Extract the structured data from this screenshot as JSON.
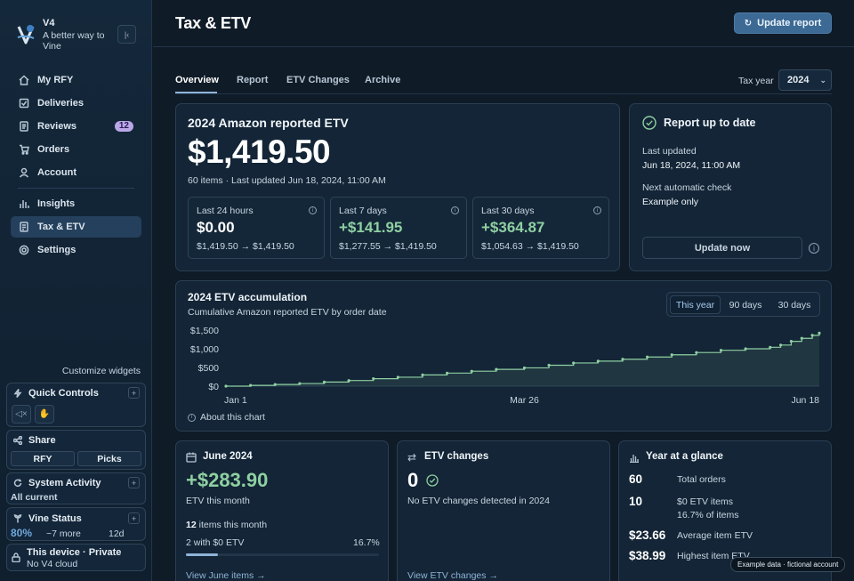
{
  "app": {
    "name": "V4",
    "tagline": "A better way to Vine"
  },
  "sidebar": {
    "nav": [
      {
        "label": "My RFY",
        "icon": "home-icon"
      },
      {
        "label": "Deliveries",
        "icon": "box-icon"
      },
      {
        "label": "Reviews",
        "icon": "document-icon",
        "badge": "12"
      },
      {
        "label": "Orders",
        "icon": "cart-icon"
      },
      {
        "label": "Account",
        "icon": "user-icon"
      },
      {
        "label": "Insights",
        "icon": "bar-chart-icon"
      },
      {
        "label": "Tax & ETV",
        "icon": "receipt-icon",
        "active": true
      },
      {
        "label": "Settings",
        "icon": "gear-icon"
      }
    ],
    "customize_label": "Customize widgets",
    "widgets": {
      "quick_controls": {
        "title": "Quick Controls"
      },
      "share": {
        "title": "Share",
        "buttons": [
          "RFY",
          "Picks"
        ]
      },
      "system_activity": {
        "title": "System Activity",
        "status": "All current"
      },
      "vine_status": {
        "title": "Vine Status",
        "percent": "80%",
        "more": "~7 more",
        "days": "12d"
      },
      "device": {
        "title": "This device · Private",
        "subtitle": "No V4 cloud"
      }
    }
  },
  "header": {
    "title": "Tax & ETV",
    "update_report_label": "Update report"
  },
  "tabs": [
    {
      "label": "Overview",
      "active": true
    },
    {
      "label": "Report"
    },
    {
      "label": "ETV Changes"
    },
    {
      "label": "Archive"
    }
  ],
  "tax_year": {
    "label": "Tax year",
    "value": "2024"
  },
  "reported_etv": {
    "title": "2024 Amazon reported ETV",
    "amount": "$1,419.50",
    "meta": "60 items · Last updated Jun 18, 2024, 11:00 AM",
    "periods": [
      {
        "label": "Last 24 hours",
        "value": "$0.00",
        "range": "$1,419.50 → $1,419.50",
        "highlight": false
      },
      {
        "label": "Last 7 days",
        "value": "+$141.95",
        "range": "$1,277.55 → $1,419.50",
        "highlight": true
      },
      {
        "label": "Last 30 days",
        "value": "+$364.87",
        "range": "$1,054.63 → $1,419.50",
        "highlight": true
      }
    ]
  },
  "report_status": {
    "title": "Report up to date",
    "last_updated_label": "Last updated",
    "last_updated_value": "Jun 18, 2024, 11:00 AM",
    "next_check_label": "Next automatic check",
    "next_check_value": "Example only",
    "update_now_label": "Update now"
  },
  "accumulation": {
    "title": "2024 ETV accumulation",
    "subtitle": "Cumulative Amazon reported ETV by order date",
    "ranges": [
      {
        "label": "This year",
        "active": true
      },
      {
        "label": "90 days"
      },
      {
        "label": "30 days"
      }
    ],
    "about_label": "About this chart"
  },
  "chart_data": {
    "type": "area",
    "title": "2024 ETV accumulation",
    "subtitle": "Cumulative Amazon reported ETV by order date",
    "x_tick_labels": [
      "Jan 1",
      "Mar 26",
      "Jun 18"
    ],
    "y_tick_labels": [
      "$1,500",
      "$1,000",
      "$500",
      "$0"
    ],
    "y_ticks": [
      1500,
      1000,
      500,
      0
    ],
    "ylim": [
      0,
      1500
    ],
    "x_range_days": [
      0,
      169
    ],
    "series": [
      {
        "x": [
          0,
          7,
          14,
          21,
          28,
          35,
          42,
          49,
          56,
          63,
          70,
          77,
          85,
          92,
          99,
          106,
          113,
          120,
          127,
          134,
          141,
          148,
          155,
          158,
          161,
          164,
          167,
          169
        ],
        "y": [
          0,
          20,
          45,
          70,
          110,
          150,
          200,
          240,
          300,
          350,
          400,
          450,
          490,
          560,
          620,
          670,
          720,
          780,
          840,
          900,
          960,
          1000,
          1040,
          1100,
          1200,
          1280,
          1360,
          1419.5
        ]
      }
    ],
    "grid": false,
    "color": "#8fd0a2"
  },
  "june": {
    "title": "June 2024",
    "amount": "+$283.90",
    "amount_label": "ETV this month",
    "items_count": "12",
    "items_label": "items this month",
    "zero_etv": "2 with $0 ETV",
    "zero_percent": "16.7%",
    "zero_fraction": 0.167,
    "link": "View June items →"
  },
  "etv_changes": {
    "title": "ETV changes",
    "count": "0",
    "description": "No ETV changes detected in 2024",
    "link": "View ETV changes →"
  },
  "glance": {
    "title": "Year at a glance",
    "rows": [
      {
        "value": "60",
        "label": "Total orders",
        "sub": ""
      },
      {
        "value": "10",
        "label": "$0 ETV items",
        "sub": "16.7% of items"
      },
      {
        "value": "$23.66",
        "label": "Average item ETV",
        "sub": ""
      },
      {
        "value": "$38.99",
        "label": "Highest item ETV",
        "sub": ""
      }
    ]
  },
  "footer_tag": "Example data · fictional account",
  "colors": {
    "accent": "#3d6a95",
    "positive": "#8fd0a2",
    "badge": "#b9a7e8"
  }
}
